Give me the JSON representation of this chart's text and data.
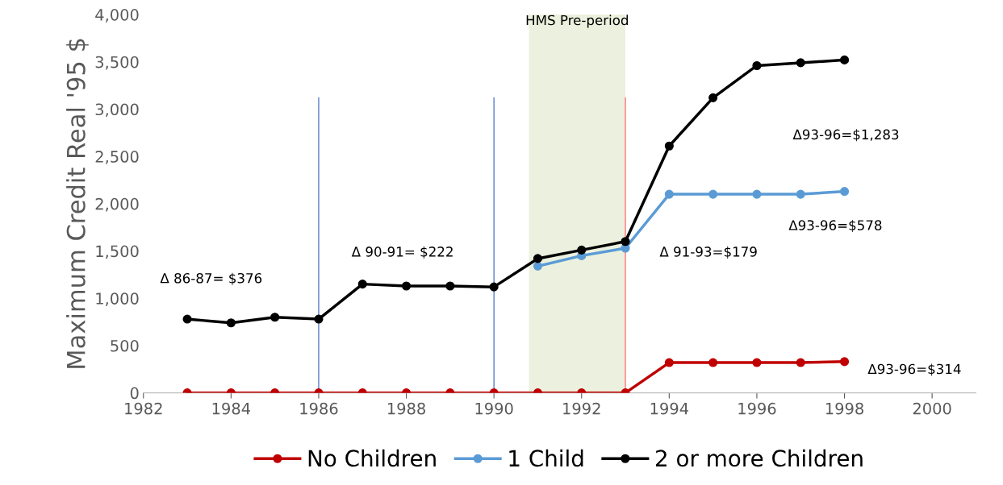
{
  "chart_data": {
    "type": "line",
    "ylabel": "Maximum Credit Real '95 $",
    "x": [
      1983,
      1984,
      1985,
      1986,
      1987,
      1988,
      1989,
      1990,
      1991,
      1992,
      1993,
      1994,
      1995,
      1996,
      1997,
      1998
    ],
    "series": [
      {
        "name": "No Children",
        "color": "#c00000",
        "values": [
          0,
          0,
          0,
          0,
          0,
          0,
          0,
          0,
          0,
          0,
          0,
          320,
          320,
          320,
          320,
          330
        ]
      },
      {
        "name": "1 Child",
        "color": "#5b9bd5",
        "values": [
          null,
          null,
          null,
          null,
          null,
          null,
          null,
          null,
          1340,
          1450,
          1530,
          2100,
          2100,
          2100,
          2100,
          2130
        ]
      },
      {
        "name": "2 or more Children",
        "color": "#000000",
        "values": [
          780,
          740,
          800,
          780,
          1150,
          1130,
          1130,
          1120,
          1420,
          1510,
          1600,
          2610,
          3120,
          3460,
          3490,
          3520
        ]
      }
    ],
    "marker": "circle",
    "line_style": "solid",
    "xlim": [
      1982,
      2001
    ],
    "xticks": [
      1982,
      1984,
      1986,
      1988,
      1990,
      1992,
      1994,
      1996,
      1998,
      2000
    ],
    "ylim": [
      0,
      4000
    ],
    "yticks": [
      0,
      {
        "value": 500,
        "label": "500"
      },
      {
        "value": 1000,
        "label": "1,000"
      },
      {
        "value": 1500,
        "label": "1,500"
      },
      {
        "value": 2000,
        "label": "2,000"
      },
      {
        "value": 2500,
        "label": "2,500"
      },
      {
        "value": 3000,
        "label": "3,000"
      },
      {
        "value": 3500,
        "label": "3,500"
      },
      {
        "value": 4000,
        "label": "4,000"
      }
    ],
    "ref_lines": [
      {
        "axis": "x",
        "value": 1986,
        "color": "#4472c4"
      },
      {
        "axis": "x",
        "value": 1990,
        "color": "#4472c4"
      },
      {
        "axis": "x",
        "value": 1993,
        "color": "#ff6666"
      }
    ],
    "bands": [
      {
        "axis": "x",
        "from": 1990.8,
        "to": 1993,
        "label": "HMS Pre-period",
        "color": "#ebf1de"
      }
    ],
    "annotations": [
      "Δ 86-87= $376",
      "Δ 90-91= $222",
      "Δ 91-93=$179",
      "Δ93-96=$1,283",
      "Δ93-96=$578",
      "Δ93-96=$314"
    ],
    "grid": false,
    "legend": "bottom"
  }
}
